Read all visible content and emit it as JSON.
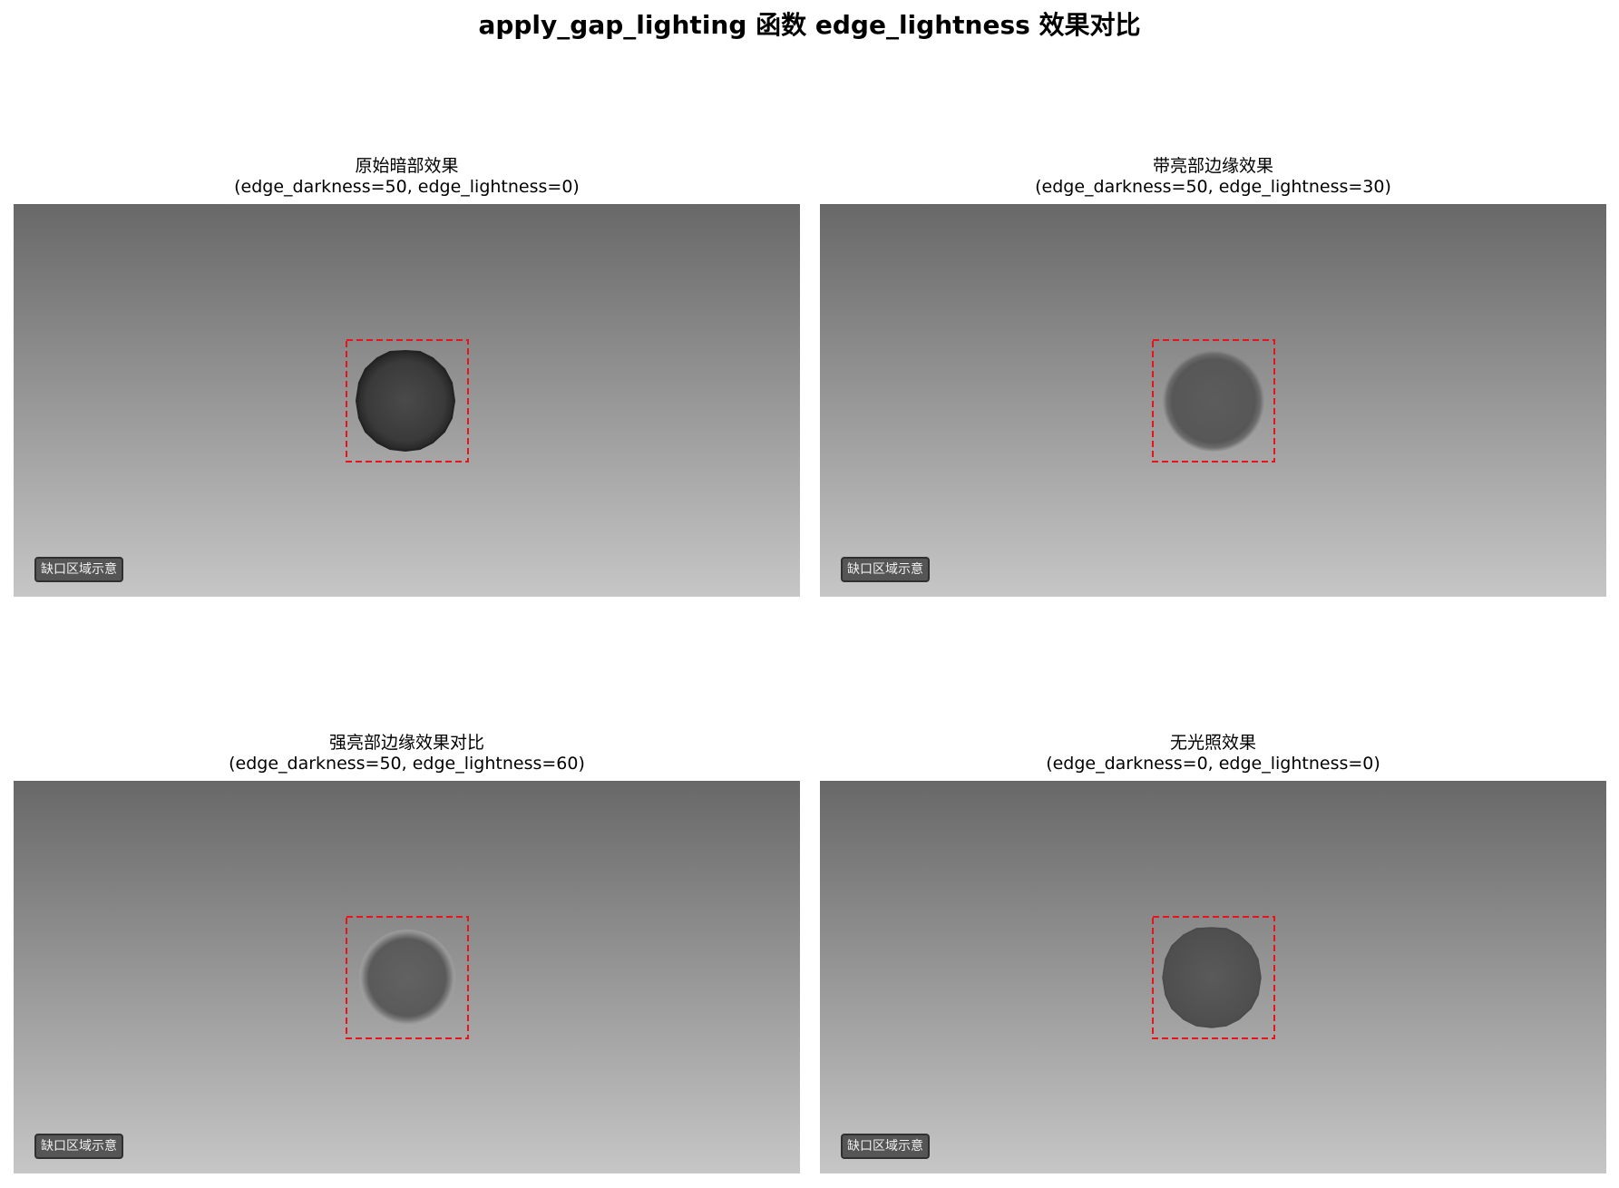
{
  "figure": {
    "title": "apply_gap_lighting 函数 edge_lightness 效果对比"
  },
  "panels": [
    {
      "title_line1": "原始暗部效果",
      "title_line2": "(edge_darkness=50, edge_lightness=0)",
      "badge": "缺口区域示意",
      "variant": "dark-edge"
    },
    {
      "title_line1": "带亮部边缘效果",
      "title_line2": "(edge_darkness=50, edge_lightness=30)",
      "badge": "缺口区域示意",
      "variant": "soft-light-edge"
    },
    {
      "title_line1": "强亮部边缘效果对比",
      "title_line2": "(edge_darkness=50, edge_lightness=60)",
      "badge": "缺口区域示意",
      "variant": "strong-light-edge"
    },
    {
      "title_line1": "无光照效果",
      "title_line2": "(edge_darkness=0, edge_lightness=0)",
      "badge": "缺口区域示意",
      "variant": "no-lighting"
    }
  ],
  "colors": {
    "background_top": "#686868",
    "background_bottom": "#c6c6c6",
    "highlight_box": "#e8141c",
    "badge_fill": "#555555"
  }
}
